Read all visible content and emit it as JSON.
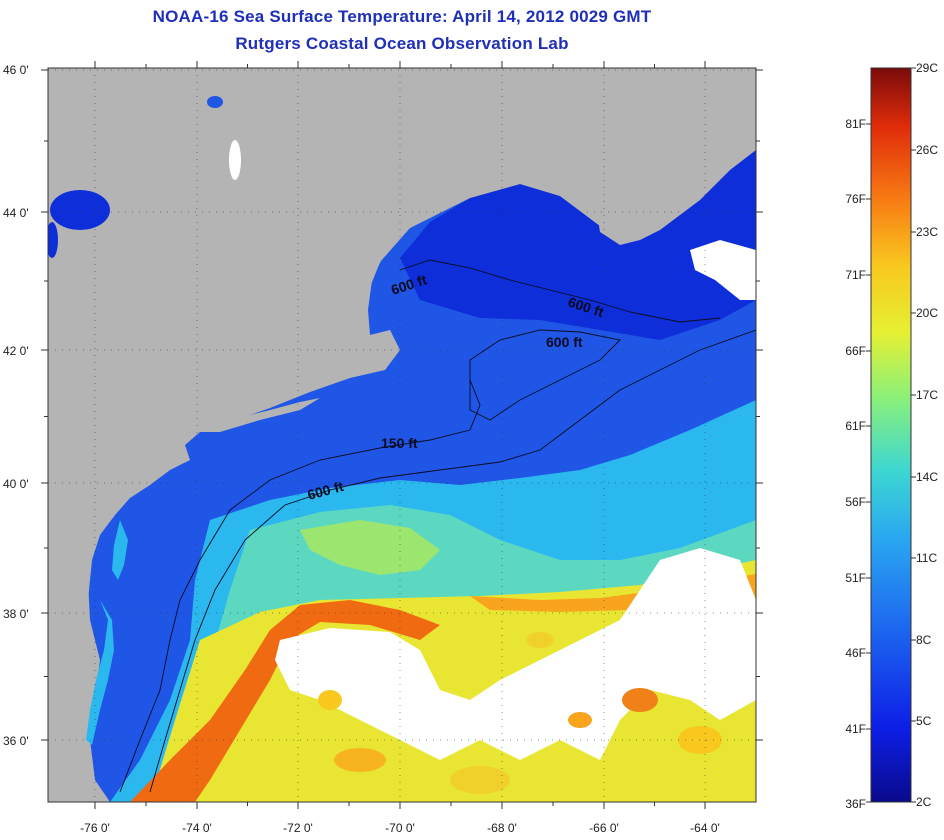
{
  "header": {
    "title": "NOAA-16 Sea Surface Temperature:  April 14, 2012 0029 GMT",
    "subtitle": "Rutgers Coastal Ocean Observation Lab"
  },
  "map": {
    "lon_labels": [
      "-76 0'",
      "-74 0'",
      "-72 0'",
      "-70 0'",
      "-68 0'",
      "-66 0'",
      "-64 0'"
    ],
    "lat_labels": [
      "46 0'",
      "44 0'",
      "42 0'",
      "40 0'",
      "38 0'",
      "36 0'"
    ],
    "depth_labels": [
      "600 ft",
      "600 ft",
      "600 ft",
      "150 ft",
      "600 ft"
    ],
    "land_color": "#b4b4b4",
    "cloud_color": "#ffffff"
  },
  "colorbar": {
    "celsius_labels": [
      "29C",
      "26C",
      "23C",
      "20C",
      "17C",
      "14C",
      "11C",
      "8C",
      "5C",
      "2C"
    ],
    "fahrenheit_labels": [
      "81F",
      "76F",
      "71F",
      "66F",
      "61F",
      "56F",
      "51F",
      "46F",
      "41F",
      "36F"
    ],
    "colors": [
      "#0a0a8c",
      "#0d1ee6",
      "#1e6ef0",
      "#2aa8f0",
      "#3cd6d2",
      "#8af07a",
      "#e6f032",
      "#f8c81e",
      "#f87c14",
      "#e02c0a",
      "#7a0a0a"
    ]
  }
}
